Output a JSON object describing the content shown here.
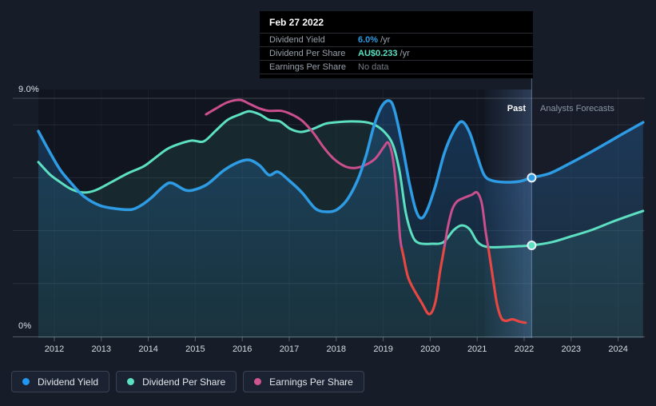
{
  "tooltip": {
    "date": "Feb 27 2022",
    "rows": [
      {
        "label": "Dividend Yield",
        "value": "6.0%",
        "suffix": "/yr",
        "value_color": "#2e9ce4",
        "bold": true
      },
      {
        "label": "Dividend Per Share",
        "value": "AU$0.233",
        "suffix": "/yr",
        "value_color": "#5ce0c1",
        "bold": true
      },
      {
        "label": "Earnings Per Share",
        "value": "No data",
        "suffix": "",
        "value_color": "#737b86",
        "bold": false
      }
    ]
  },
  "regions": {
    "past_label": "Past",
    "forecast_label": "Analysts Forecasts"
  },
  "legend": [
    {
      "label": "Dividend Yield",
      "color": "#2196f3"
    },
    {
      "label": "Dividend Per Share",
      "color": "#5ce0c1"
    },
    {
      "label": "Earnings Per Share",
      "color": "#cf5590"
    }
  ],
  "colors": {
    "background": "#161c28",
    "plot_background": "#10151f",
    "yield_line": "#2e9ce4",
    "dps_line": "#5ce0c1",
    "eps_line": "#ca4f8c",
    "eps_negative": "#e8473f",
    "grid": "rgba(255,255,255,0.085)",
    "marker_ring": "#eaf3fc"
  },
  "chart_data": {
    "type": "line",
    "title": "Dividend history and forecast",
    "x_axis": {
      "years_labeled": [
        2012,
        2013,
        2014,
        2015,
        2016,
        2017,
        2018,
        2019,
        2020,
        2021,
        2022,
        2023,
        2024
      ]
    },
    "y_axis": {
      "label_top": "9.0%",
      "label_bottom": "0%",
      "min": 0,
      "max": 9,
      "unit": "%",
      "grid_step": 2,
      "top_line_value": 9
    },
    "divider": {
      "date": "Feb 27 2022",
      "year_decimal": 2022.16
    },
    "series": [
      {
        "name": "Dividend Yield",
        "unit": "%",
        "color": "#2e9ce4",
        "past": [
          [
            2011.66,
            7.76
          ],
          [
            2011.86,
            7.1
          ],
          [
            2012.12,
            6.31
          ],
          [
            2012.37,
            5.77
          ],
          [
            2012.63,
            5.29
          ],
          [
            2012.97,
            4.95
          ],
          [
            2013.31,
            4.83
          ],
          [
            2013.65,
            4.8
          ],
          [
            2013.87,
            4.98
          ],
          [
            2014.07,
            5.25
          ],
          [
            2014.33,
            5.68
          ],
          [
            2014.5,
            5.8
          ],
          [
            2014.79,
            5.53
          ],
          [
            2015.01,
            5.56
          ],
          [
            2015.27,
            5.77
          ],
          [
            2015.61,
            6.28
          ],
          [
            2015.91,
            6.58
          ],
          [
            2016.15,
            6.67
          ],
          [
            2016.37,
            6.46
          ],
          [
            2016.57,
            6.1
          ],
          [
            2016.76,
            6.22
          ],
          [
            2017.0,
            5.89
          ],
          [
            2017.27,
            5.44
          ],
          [
            2017.56,
            4.83
          ],
          [
            2017.82,
            4.71
          ],
          [
            2018.02,
            4.8
          ],
          [
            2018.24,
            5.19
          ],
          [
            2018.45,
            5.89
          ],
          [
            2018.63,
            6.8
          ],
          [
            2018.8,
            7.94
          ],
          [
            2018.97,
            8.7
          ],
          [
            2019.13,
            8.91
          ],
          [
            2019.24,
            8.55
          ],
          [
            2019.4,
            7.28
          ],
          [
            2019.55,
            5.86
          ],
          [
            2019.69,
            4.8
          ],
          [
            2019.81,
            4.47
          ],
          [
            2019.94,
            4.8
          ],
          [
            2020.11,
            5.68
          ],
          [
            2020.3,
            6.92
          ],
          [
            2020.49,
            7.73
          ],
          [
            2020.67,
            8.12
          ],
          [
            2020.84,
            7.7
          ],
          [
            2021.0,
            6.83
          ],
          [
            2021.15,
            6.1
          ],
          [
            2021.32,
            5.89
          ],
          [
            2021.59,
            5.83
          ],
          [
            2021.9,
            5.86
          ],
          [
            2022.16,
            6.0
          ]
        ],
        "forecast": [
          [
            2022.16,
            6.0
          ],
          [
            2022.54,
            6.16
          ],
          [
            2022.92,
            6.49
          ],
          [
            2023.31,
            6.86
          ],
          [
            2023.7,
            7.25
          ],
          [
            2024.11,
            7.67
          ],
          [
            2024.53,
            8.09
          ]
        ]
      },
      {
        "name": "Dividend Per Share",
        "unit": "AU$",
        "color": "#5ce0c1",
        "past": [
          [
            2011.66,
            0.446
          ],
          [
            2011.9,
            0.415
          ],
          [
            2012.12,
            0.395
          ],
          [
            2012.37,
            0.376
          ],
          [
            2012.63,
            0.368
          ],
          [
            2012.88,
            0.374
          ],
          [
            2013.22,
            0.395
          ],
          [
            2013.56,
            0.417
          ],
          [
            2013.9,
            0.435
          ],
          [
            2014.16,
            0.458
          ],
          [
            2014.41,
            0.48
          ],
          [
            2014.67,
            0.493
          ],
          [
            2014.93,
            0.501
          ],
          [
            2015.18,
            0.499
          ],
          [
            2015.44,
            0.527
          ],
          [
            2015.69,
            0.554
          ],
          [
            2015.95,
            0.568
          ],
          [
            2016.15,
            0.576
          ],
          [
            2016.37,
            0.568
          ],
          [
            2016.57,
            0.554
          ],
          [
            2016.8,
            0.55
          ],
          [
            2017.02,
            0.531
          ],
          [
            2017.25,
            0.523
          ],
          [
            2017.51,
            0.531
          ],
          [
            2017.77,
            0.544
          ],
          [
            2018.02,
            0.548
          ],
          [
            2018.33,
            0.55
          ],
          [
            2018.63,
            0.548
          ],
          [
            2018.84,
            0.54
          ],
          [
            2019.04,
            0.521
          ],
          [
            2019.21,
            0.489
          ],
          [
            2019.35,
            0.421
          ],
          [
            2019.48,
            0.317
          ],
          [
            2019.62,
            0.258
          ],
          [
            2019.76,
            0.239
          ],
          [
            2020.03,
            0.237
          ],
          [
            2020.28,
            0.241
          ],
          [
            2020.5,
            0.272
          ],
          [
            2020.67,
            0.284
          ],
          [
            2020.84,
            0.274
          ],
          [
            2021.01,
            0.241
          ],
          [
            2021.22,
            0.229
          ],
          [
            2021.56,
            0.229
          ],
          [
            2021.9,
            0.231
          ],
          [
            2022.16,
            0.233
          ]
        ],
        "forecast": [
          [
            2022.16,
            0.233
          ],
          [
            2022.58,
            0.241
          ],
          [
            2023.0,
            0.256
          ],
          [
            2023.43,
            0.272
          ],
          [
            2023.85,
            0.292
          ],
          [
            2024.19,
            0.307
          ],
          [
            2024.53,
            0.321
          ]
        ]
      },
      {
        "name": "Earnings Per Share",
        "unit": "AU$",
        "color": "#ca4f8c",
        "negative_color": "#e8473f",
        "red_below": 0.227,
        "past": [
          [
            2015.23,
            0.568
          ],
          [
            2015.44,
            0.583
          ],
          [
            2015.69,
            0.599
          ],
          [
            2015.95,
            0.605
          ],
          [
            2016.15,
            0.595
          ],
          [
            2016.37,
            0.583
          ],
          [
            2016.57,
            0.577
          ],
          [
            2016.83,
            0.577
          ],
          [
            2017.05,
            0.568
          ],
          [
            2017.27,
            0.552
          ],
          [
            2017.51,
            0.521
          ],
          [
            2017.73,
            0.484
          ],
          [
            2017.95,
            0.454
          ],
          [
            2018.19,
            0.435
          ],
          [
            2018.41,
            0.431
          ],
          [
            2018.63,
            0.439
          ],
          [
            2018.84,
            0.456
          ],
          [
            2019.01,
            0.484
          ],
          [
            2019.11,
            0.495
          ],
          [
            2019.21,
            0.452
          ],
          [
            2019.3,
            0.35
          ],
          [
            2019.36,
            0.251
          ],
          [
            2019.43,
            0.206
          ],
          [
            2019.52,
            0.155
          ],
          [
            2019.63,
            0.125
          ],
          [
            2019.81,
            0.088
          ],
          [
            2019.98,
            0.057
          ],
          [
            2020.11,
            0.088
          ],
          [
            2020.21,
            0.166
          ],
          [
            2020.3,
            0.227
          ],
          [
            2020.38,
            0.282
          ],
          [
            2020.47,
            0.325
          ],
          [
            2020.57,
            0.345
          ],
          [
            2020.71,
            0.354
          ],
          [
            2020.88,
            0.362
          ],
          [
            2021.0,
            0.368
          ],
          [
            2021.1,
            0.339
          ],
          [
            2021.18,
            0.268
          ],
          [
            2021.25,
            0.217
          ],
          [
            2021.34,
            0.145
          ],
          [
            2021.42,
            0.084
          ],
          [
            2021.51,
            0.048
          ],
          [
            2021.61,
            0.04
          ],
          [
            2021.75,
            0.044
          ],
          [
            2021.9,
            0.038
          ],
          [
            2022.03,
            0.035
          ]
        ]
      }
    ],
    "markers": [
      {
        "series": "Dividend Yield",
        "year": 2022.16,
        "value": 6.0,
        "color": "#2e9ce4"
      },
      {
        "series": "Dividend Per Share",
        "year": 2022.16,
        "value": 0.233,
        "color": "#5ce0c1"
      }
    ]
  }
}
